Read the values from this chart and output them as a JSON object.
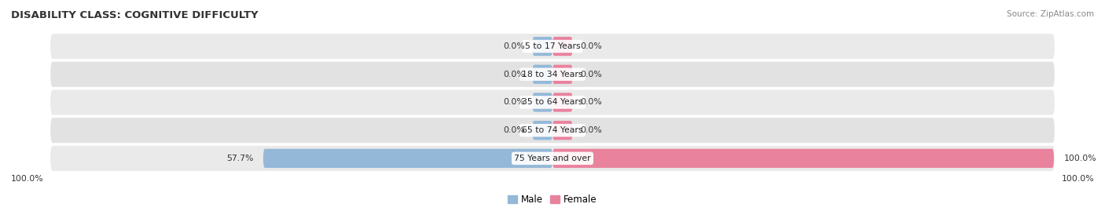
{
  "title": "DISABILITY CLASS: COGNITIVE DIFFICULTY",
  "source": "Source: ZipAtlas.com",
  "categories": [
    "5 to 17 Years",
    "18 to 34 Years",
    "35 to 64 Years",
    "65 to 74 Years",
    "75 Years and over"
  ],
  "male_values": [
    0.0,
    0.0,
    0.0,
    0.0,
    57.7
  ],
  "female_values": [
    0.0,
    0.0,
    0.0,
    0.0,
    100.0
  ],
  "male_color": "#94b8d8",
  "female_color": "#e9829d",
  "row_bg_color_odd": "#ebebeb",
  "row_bg_color_even": "#e0e0e0",
  "label_color": "#333333",
  "title_color": "#333333",
  "source_color": "#888888",
  "axis_label_left": "100.0%",
  "axis_label_right": "100.0%",
  "max_val": 100.0,
  "fig_width": 14.06,
  "fig_height": 2.69,
  "dpi": 100
}
